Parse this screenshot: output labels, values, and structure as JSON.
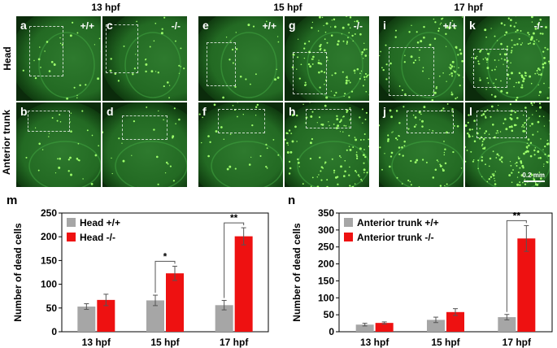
{
  "figure": {
    "time_headers": [
      "13 hpf",
      "15 hpf",
      "17 hpf"
    ],
    "row_labels": {
      "head": "Head",
      "trunk": "Anterior trunk"
    },
    "panels": [
      {
        "id": "a",
        "letter": "a",
        "genotype": "+/+",
        "row": "head",
        "time": 0,
        "col": 0
      },
      {
        "id": "c",
        "letter": "c",
        "genotype": "-/-",
        "row": "head",
        "time": 0,
        "col": 1
      },
      {
        "id": "e",
        "letter": "e",
        "genotype": "+/+",
        "row": "head",
        "time": 1,
        "col": 0
      },
      {
        "id": "g",
        "letter": "g",
        "genotype": "-/-",
        "row": "head",
        "time": 1,
        "col": 1
      },
      {
        "id": "i",
        "letter": "i",
        "genotype": "+/+",
        "row": "head",
        "time": 2,
        "col": 0
      },
      {
        "id": "k",
        "letter": "k",
        "genotype": "-/-",
        "row": "head",
        "time": 2,
        "col": 1
      },
      {
        "id": "b",
        "letter": "b",
        "genotype": "",
        "row": "trunk",
        "time": 0,
        "col": 0
      },
      {
        "id": "d",
        "letter": "d",
        "genotype": "",
        "row": "trunk",
        "time": 0,
        "col": 1
      },
      {
        "id": "f",
        "letter": "f",
        "genotype": "",
        "row": "trunk",
        "time": 1,
        "col": 0
      },
      {
        "id": "h",
        "letter": "h",
        "genotype": "",
        "row": "trunk",
        "time": 1,
        "col": 1
      },
      {
        "id": "j",
        "letter": "j",
        "genotype": "",
        "row": "trunk",
        "time": 2,
        "col": 0
      },
      {
        "id": "l",
        "letter": "l",
        "genotype": "",
        "row": "trunk",
        "time": 2,
        "col": 1
      }
    ],
    "scale_bar_label": "0.2 mm"
  },
  "colors": {
    "wildtype_bar": "#a6a6a6",
    "mutant_bar": "#ee1111",
    "panel_bg": "#0b2b0b",
    "tissue": "#2f8a2f",
    "dots": "#9dff6a"
  },
  "chart_data": [
    {
      "panel_label": "m",
      "type": "bar",
      "categories": [
        "13 hpf",
        "15 hpf",
        "17 hpf"
      ],
      "ylabel": "Number of dead cells",
      "ylim": [
        0,
        250
      ],
      "yticks": [
        0,
        50,
        100,
        150,
        200,
        250
      ],
      "legend_position": "top-left",
      "series": [
        {
          "name": "Head +/+",
          "color": "#a6a6a6",
          "values": [
            53,
            66,
            56
          ],
          "errors": [
            6,
            11,
            10
          ]
        },
        {
          "name": "Head  -/-",
          "color": "#ee1111",
          "values": [
            67,
            123,
            201
          ],
          "errors": [
            12,
            15,
            18
          ]
        }
      ],
      "significance": [
        {
          "category_index": 1,
          "label": "*"
        },
        {
          "category_index": 2,
          "label": "**"
        }
      ]
    },
    {
      "panel_label": "n",
      "type": "bar",
      "categories": [
        "13 hpf",
        "15 hpf",
        "17 hpf"
      ],
      "ylabel": "Number of dead cells",
      "ylim": [
        0,
        350
      ],
      "yticks": [
        0,
        50,
        100,
        150,
        200,
        250,
        300,
        350
      ],
      "legend_position": "top-left",
      "series": [
        {
          "name": "Anterior trunk +/+",
          "color": "#a6a6a6",
          "values": [
            21,
            35,
            43
          ],
          "errors": [
            4,
            8,
            8
          ]
        },
        {
          "name": "Anterior trunk  -/-",
          "color": "#ee1111",
          "values": [
            26,
            58,
            275
          ],
          "errors": [
            3,
            10,
            38
          ]
        }
      ],
      "significance": [
        {
          "category_index": 2,
          "label": "**"
        }
      ]
    }
  ]
}
